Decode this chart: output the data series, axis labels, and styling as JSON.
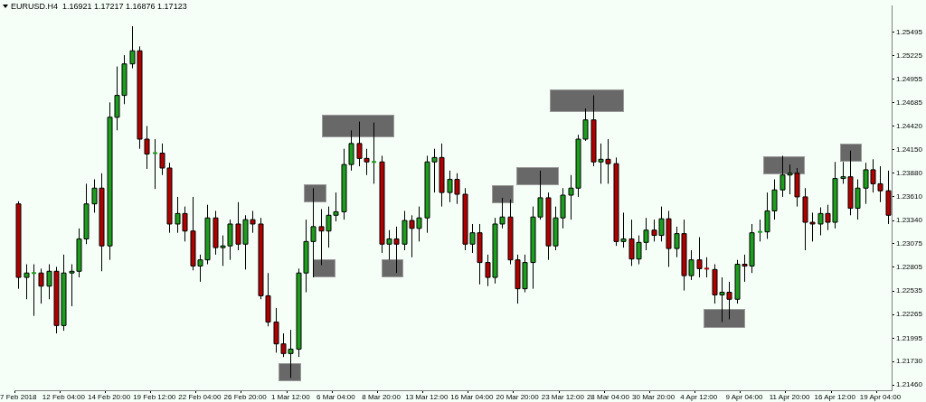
{
  "chart_data": {
    "type": "candlestick",
    "title": "EURUSD.H4  1.16921 1.17217 1.16876 1.17123",
    "categories": [
      "7 Feb 2018",
      null,
      null,
      null,
      null,
      null,
      "12 Feb 04:00",
      null,
      null,
      null,
      null,
      null,
      "14 Feb 20:00",
      null,
      null,
      null,
      null,
      null,
      "19 Feb 12:00",
      null,
      null,
      null,
      null,
      null,
      "22 Feb 04:00",
      null,
      null,
      null,
      null,
      null,
      "26 Feb 20:00",
      null,
      null,
      null,
      null,
      null,
      "1 Mar 12:00",
      null,
      null,
      null,
      null,
      null,
      "6 Mar 04:00",
      null,
      null,
      null,
      null,
      null,
      "8 Mar 20:00",
      null,
      null,
      null,
      null,
      null,
      "13 Mar 12:00",
      null,
      null,
      null,
      null,
      null,
      "16 Mar 04:00",
      null,
      null,
      null,
      null,
      null,
      "20 Mar 20:00",
      null,
      null,
      null,
      null,
      null,
      "23 Mar 12:00",
      null,
      null,
      null,
      null,
      null,
      "28 Mar 04:00",
      null,
      null,
      null,
      null,
      null,
      "30 Mar 20:00",
      null,
      null,
      null,
      null,
      null,
      "4 Apr 12:00",
      null,
      null,
      null,
      null,
      null,
      "9 Apr 04:00",
      null,
      null,
      null,
      null,
      null,
      "11 Apr 20:00",
      null,
      null,
      null,
      null,
      null,
      "16 Apr 12:00",
      null,
      null,
      null,
      null,
      null,
      "19 Apr 04:00",
      null
    ],
    "ohlc": [
      [
        1.2353,
        1.2356,
        1.2256,
        1.2269
      ],
      [
        1.2269,
        1.2284,
        1.2244,
        1.2274
      ],
      [
        1.2274,
        1.2284,
        1.2225,
        1.2274
      ],
      [
        1.2274,
        1.2279,
        1.2239,
        1.2259
      ],
      [
        1.2259,
        1.2284,
        1.2244,
        1.2276
      ],
      [
        1.2276,
        1.2281,
        1.2205,
        1.2214
      ],
      [
        1.2214,
        1.2295,
        1.2208,
        1.2274
      ],
      [
        1.2274,
        1.2284,
        1.2236,
        1.2276
      ],
      [
        1.2276,
        1.2325,
        1.2269,
        1.2313
      ],
      [
        1.2313,
        1.2376,
        1.2307,
        1.2353
      ],
      [
        1.2353,
        1.2381,
        1.2343,
        1.2371
      ],
      [
        1.2371,
        1.2388,
        1.2276,
        1.2305
      ],
      [
        1.2305,
        1.2469,
        1.2289,
        1.2452
      ],
      [
        1.2452,
        1.251,
        1.2437,
        1.2477
      ],
      [
        1.2477,
        1.2523,
        1.2467,
        1.2513
      ],
      [
        1.2513,
        1.2556,
        1.2508,
        1.2528
      ],
      [
        1.2528,
        1.2533,
        1.2416,
        1.2427
      ],
      [
        1.2427,
        1.2442,
        1.2393,
        1.241
      ],
      [
        1.241,
        1.2427,
        1.237,
        1.2411
      ],
      [
        1.2411,
        1.2422,
        1.2386,
        1.2394
      ],
      [
        1.2394,
        1.24,
        1.232,
        1.233
      ],
      [
        1.233,
        1.2361,
        1.232,
        1.2342
      ],
      [
        1.2342,
        1.235,
        1.231,
        1.2322
      ],
      [
        1.2322,
        1.2361,
        1.2277,
        1.2282
      ],
      [
        1.2282,
        1.2295,
        1.2264,
        1.2289
      ],
      [
        1.2289,
        1.2352,
        1.2284,
        1.2337
      ],
      [
        1.2337,
        1.2345,
        1.2295,
        1.2303
      ],
      [
        1.2303,
        1.2317,
        1.2282,
        1.2305
      ],
      [
        1.2305,
        1.2335,
        1.2289,
        1.233
      ],
      [
        1.233,
        1.2355,
        1.23,
        1.2307
      ],
      [
        1.2307,
        1.234,
        1.2278,
        1.2335
      ],
      [
        1.2335,
        1.2345,
        1.232,
        1.233
      ],
      [
        1.233,
        1.2337,
        1.2244,
        1.2248
      ],
      [
        1.2248,
        1.2274,
        1.2213,
        1.2218
      ],
      [
        1.2218,
        1.2234,
        1.2183,
        1.2193
      ],
      [
        1.2193,
        1.2205,
        1.2178,
        1.2182
      ],
      [
        1.2182,
        1.2209,
        1.2154,
        1.2187
      ],
      [
        1.2187,
        1.2279,
        1.2178,
        1.2274
      ],
      [
        1.2274,
        1.2335,
        1.2252,
        1.231
      ],
      [
        1.231,
        1.2371,
        1.2269,
        1.2327
      ],
      [
        1.2327,
        1.2347,
        1.2283,
        1.2322
      ],
      [
        1.2322,
        1.235,
        1.2303,
        1.234
      ],
      [
        1.234,
        1.2366,
        1.2333,
        1.2344
      ],
      [
        1.2344,
        1.2416,
        1.2335,
        1.2398
      ],
      [
        1.2398,
        1.2437,
        1.2391,
        1.2422
      ],
      [
        1.2422,
        1.2447,
        1.2396,
        1.2405
      ],
      [
        1.2405,
        1.2416,
        1.2386,
        1.2401
      ],
      [
        1.2401,
        1.2446,
        1.2376,
        1.2401
      ],
      [
        1.2401,
        1.2408,
        1.2297,
        1.2307
      ],
      [
        1.2307,
        1.2323,
        1.2289,
        1.2313
      ],
      [
        1.2313,
        1.2327,
        1.2274,
        1.2307
      ],
      [
        1.2307,
        1.2345,
        1.23,
        1.2334
      ],
      [
        1.2334,
        1.234,
        1.2292,
        1.2325
      ],
      [
        1.2325,
        1.235,
        1.231,
        1.2337
      ],
      [
        1.2337,
        1.2408,
        1.232,
        1.2401
      ],
      [
        1.2401,
        1.2416,
        1.2366,
        1.2406
      ],
      [
        1.2406,
        1.2422,
        1.235,
        1.2366
      ],
      [
        1.2366,
        1.2391,
        1.2355,
        1.2381
      ],
      [
        1.2381,
        1.2388,
        1.2353,
        1.2364
      ],
      [
        1.2364,
        1.2371,
        1.23,
        1.2307
      ],
      [
        1.2307,
        1.233,
        1.2297,
        1.232
      ],
      [
        1.232,
        1.233,
        1.2261,
        1.2286
      ],
      [
        1.2286,
        1.2295,
        1.2259,
        1.2269
      ],
      [
        1.2269,
        1.2337,
        1.2262,
        1.233
      ],
      [
        1.233,
        1.236,
        1.2325,
        1.2338
      ],
      [
        1.2338,
        1.2358,
        1.2284,
        1.2289
      ],
      [
        1.2289,
        1.2295,
        1.2239,
        1.2256
      ],
      [
        1.2256,
        1.2295,
        1.2252,
        1.2286
      ],
      [
        1.2286,
        1.235,
        1.2256,
        1.2338
      ],
      [
        1.2338,
        1.2391,
        1.2335,
        1.236
      ],
      [
        1.236,
        1.2366,
        1.2289,
        1.2305
      ],
      [
        1.2305,
        1.235,
        1.23,
        1.2337
      ],
      [
        1.2337,
        1.2371,
        1.2325,
        1.2363
      ],
      [
        1.2363,
        1.2386,
        1.2335,
        1.2371
      ],
      [
        1.2371,
        1.2432,
        1.2361,
        1.2427
      ],
      [
        1.2427,
        1.2462,
        1.2425,
        1.2449
      ],
      [
        1.2449,
        1.2477,
        1.2396,
        1.2401
      ],
      [
        1.2401,
        1.2422,
        1.2376,
        1.2404
      ],
      [
        1.2404,
        1.2427,
        1.2376,
        1.2399
      ],
      [
        1.2399,
        1.2406,
        1.2305,
        1.231
      ],
      [
        1.231,
        1.2343,
        1.2303,
        1.2313
      ],
      [
        1.2313,
        1.2335,
        1.2282,
        1.229
      ],
      [
        1.229,
        1.2317,
        1.2284,
        1.2309
      ],
      [
        1.2309,
        1.2337,
        1.23,
        1.2323
      ],
      [
        1.2323,
        1.2335,
        1.231,
        1.2317
      ],
      [
        1.2317,
        1.235,
        1.231,
        1.2336
      ],
      [
        1.2336,
        1.2345,
        1.2281,
        1.2302
      ],
      [
        1.2302,
        1.2327,
        1.2292,
        1.2319
      ],
      [
        1.2319,
        1.2335,
        1.2254,
        1.2271
      ],
      [
        1.2271,
        1.23,
        1.2266,
        1.2289
      ],
      [
        1.2289,
        1.2315,
        1.2269,
        1.2279
      ],
      [
        1.2279,
        1.2292,
        1.2269,
        1.2278
      ],
      [
        1.2278,
        1.2284,
        1.2239,
        1.2249
      ],
      [
        1.2249,
        1.2269,
        1.2218,
        1.2252
      ],
      [
        1.2252,
        1.2264,
        1.2221,
        1.2244
      ],
      [
        1.2244,
        1.2289,
        1.2239,
        1.2284
      ],
      [
        1.2284,
        1.2295,
        1.2264,
        1.2282
      ],
      [
        1.2282,
        1.233,
        1.2274,
        1.232
      ],
      [
        1.232,
        1.2335,
        1.231,
        1.2321
      ],
      [
        1.2321,
        1.2366,
        1.2313,
        1.2345
      ],
      [
        1.2345,
        1.2381,
        1.2335,
        1.2369
      ],
      [
        1.2369,
        1.2408,
        1.2361,
        1.2386
      ],
      [
        1.2386,
        1.2398,
        1.2364,
        1.2388
      ],
      [
        1.2388,
        1.2394,
        1.235,
        1.2361
      ],
      [
        1.2361,
        1.2371,
        1.23,
        1.2332
      ],
      [
        1.2332,
        1.2343,
        1.231,
        1.233
      ],
      [
        1.233,
        1.2349,
        1.2317,
        1.2342
      ],
      [
        1.2342,
        1.2352,
        1.2323,
        1.2332
      ],
      [
        1.2332,
        1.2401,
        1.2325,
        1.2382
      ],
      [
        1.2382,
        1.2401,
        1.2376,
        1.2384
      ],
      [
        1.2384,
        1.2414,
        1.234,
        1.2348
      ],
      [
        1.2348,
        1.2381,
        1.2335,
        1.2371
      ],
      [
        1.2371,
        1.24,
        1.2353,
        1.2392
      ],
      [
        1.2392,
        1.2404,
        1.2366,
        1.2376
      ],
      [
        1.2376,
        1.2396,
        1.2355,
        1.2368
      ],
      [
        1.2368,
        1.2391,
        1.233,
        1.234
      ]
    ],
    "colors": [
      "#b00000",
      "#1e9e1e",
      "#1e9e1e",
      "#b00000",
      "#1e9e1e",
      "#b00000",
      "#1e9e1e",
      "#1e9e1e",
      "#1e9e1e",
      "#1e9e1e",
      "#1e9e1e",
      "#b00000",
      "#1e9e1e",
      "#1e9e1e",
      "#1e9e1e",
      "#1e9e1e",
      "#b00000",
      "#b00000",
      "#1e9e1e",
      "#b00000",
      "#b00000",
      "#1e9e1e",
      "#b00000",
      "#b00000",
      "#1e9e1e",
      "#1e9e1e",
      "#b00000",
      "#1e9e1e",
      "#1e9e1e",
      "#b00000",
      "#1e9e1e",
      "#b00000",
      "#b00000",
      "#b00000",
      "#b00000",
      "#b00000",
      "#1e9e1e",
      "#1e9e1e",
      "#1e9e1e",
      "#1e9e1e",
      "#b00000",
      "#1e9e1e",
      "#1e9e1e",
      "#1e9e1e",
      "#1e9e1e",
      "#b00000",
      "#b00000",
      "#1e9e1e",
      "#b00000",
      "#1e9e1e",
      "#b00000",
      "#1e9e1e",
      "#b00000",
      "#1e9e1e",
      "#1e9e1e",
      "#1e9e1e",
      "#b00000",
      "#1e9e1e",
      "#b00000",
      "#b00000",
      "#1e9e1e",
      "#b00000",
      "#b00000",
      "#1e9e1e",
      "#1e9e1e",
      "#b00000",
      "#b00000",
      "#1e9e1e",
      "#1e9e1e",
      "#1e9e1e",
      "#b00000",
      "#1e9e1e",
      "#1e9e1e",
      "#1e9e1e",
      "#1e9e1e",
      "#1e9e1e",
      "#b00000",
      "#1e9e1e",
      "#b00000",
      "#b00000",
      "#1e9e1e",
      "#b00000",
      "#1e9e1e",
      "#1e9e1e",
      "#b00000",
      "#1e9e1e",
      "#b00000",
      "#1e9e1e",
      "#b00000",
      "#1e9e1e",
      "#b00000",
      "#b00000",
      "#b00000",
      "#1e9e1e",
      "#b00000",
      "#1e9e1e",
      "#b00000",
      "#1e9e1e",
      "#1e9e1e",
      "#1e9e1e",
      "#1e9e1e",
      "#1e9e1e",
      "#1e9e1e",
      "#b00000",
      "#b00000",
      "#b00000",
      "#1e9e1e",
      "#b00000",
      "#1e9e1e",
      "#1e9e1e",
      "#b00000",
      "#1e9e1e",
      "#1e9e1e",
      "#b00000",
      "#b00000",
      "#b00000"
    ],
    "ylim": [
      1.214,
      1.2579
    ],
    "yticks": [
      {
        "value": 1.2146,
        "label": "1.21460"
      },
      {
        "value": 1.2173,
        "label": "1.21730"
      },
      1.21995,
      1.22265,
      1.22535,
      1.22805,
      1.23075,
      {
        "value": 1.2334,
        "label": "1.23340"
      },
      {
        "value": 1.2361,
        "label": "1.23610"
      },
      {
        "value": 1.2388,
        "label": "1.23880"
      },
      {
        "value": 1.2415,
        "label": "1.24150"
      },
      {
        "value": 1.2442,
        "label": "1.24420"
      },
      1.24685,
      1.24955,
      1.25225,
      1.25495
    ]
  }
}
